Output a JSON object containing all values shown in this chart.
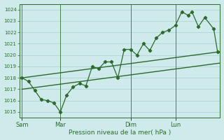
{
  "xlabel": "Pression niveau de la mer( hPa )",
  "bg_color": "#ceeaea",
  "grid_color": "#aacfcf",
  "line_color": "#2d6a2d",
  "ylim": [
    1014.5,
    1024.5
  ],
  "yticks": [
    1015,
    1016,
    1017,
    1018,
    1019,
    1020,
    1021,
    1022,
    1023,
    1024
  ],
  "day_labels": [
    "Sam",
    "Mar",
    "Dim",
    "Lun"
  ],
  "day_positions": [
    0,
    3,
    8.5,
    12
  ],
  "vline_positions": [
    0,
    3,
    8.5,
    12
  ],
  "xlim": [
    -0.2,
    15.5
  ],
  "series1_x": [
    0,
    0.5,
    1.0,
    1.5,
    2.0,
    2.5,
    3.0,
    3.5,
    4.0,
    4.5,
    5.0,
    5.5,
    6.0,
    6.5,
    7.0,
    7.5,
    8.0,
    8.5,
    9.0,
    9.5,
    10.0,
    10.5,
    11.0,
    11.5,
    12.0,
    12.5,
    13.0,
    13.3,
    13.8,
    14.3,
    15.0,
    15.3
  ],
  "series1_y": [
    1018.0,
    1017.7,
    1016.9,
    1016.1,
    1016.0,
    1015.8,
    1015.0,
    1016.5,
    1017.2,
    1017.5,
    1017.3,
    1019.0,
    1018.8,
    1019.4,
    1019.4,
    1018.0,
    1020.5,
    1020.5,
    1020.0,
    1021.0,
    1020.4,
    1021.5,
    1022.0,
    1022.2,
    1022.6,
    1023.8,
    1023.5,
    1023.8,
    1022.5,
    1023.3,
    1022.3,
    1020.3
  ],
  "series2_x": [
    0,
    15.5
  ],
  "series2_y": [
    1018.0,
    1020.3
  ],
  "series3_x": [
    0,
    15.5
  ],
  "series3_y": [
    1017.0,
    1019.3
  ]
}
